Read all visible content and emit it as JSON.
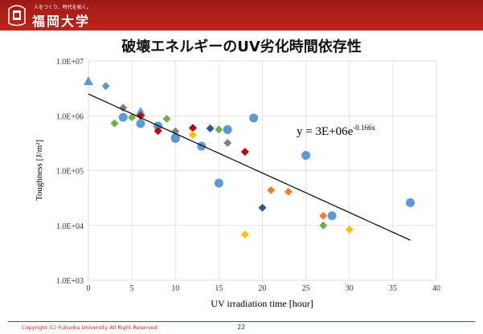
{
  "header": {
    "tagline": "人をつくり、時代を拓く。",
    "university": "福岡大学"
  },
  "slide": {
    "title": "破壊エネルギーのUV劣化時間依存性"
  },
  "footer": {
    "copyright": "Copyright (C) Fukuoka University All Right Reserved",
    "page": "22"
  },
  "chart_data": {
    "type": "scatter",
    "title": "",
    "xlabel": "UV irradiation time [hour]",
    "ylabel": "Toughness [J/m²]",
    "xlim": [
      0,
      40
    ],
    "ylim": [
      1000,
      10000000
    ],
    "yscale": "log",
    "grid": true,
    "xticks": [
      "0",
      "5",
      "10",
      "15",
      "20",
      "25",
      "30",
      "35",
      "40"
    ],
    "yticks": [
      "1.0E+03",
      "1.0E+04",
      "1.0E+05",
      "1.0E+06",
      "1.0E+07"
    ],
    "annotation": {
      "text": "y = 3E+06e",
      "exp": "-0.166x"
    },
    "trendline": {
      "type": "exponential",
      "a": 2500000,
      "b": -0.166,
      "x_range": [
        0,
        37
      ],
      "color": "#000000"
    },
    "colors": {
      "blue": "#5B9BD5",
      "darkblue": "#2F5597",
      "gray": "#808080",
      "red": "#C00000",
      "green": "#70AD47",
      "orange": "#ED7D31",
      "yellow": "#FFC000"
    },
    "points": [
      {
        "x": 0,
        "y": 4300000,
        "shape": "triangle",
        "color": "blue"
      },
      {
        "x": 2,
        "y": 3500000,
        "shape": "diamond",
        "color": "blue"
      },
      {
        "x": 4,
        "y": 1400000,
        "shape": "diamond",
        "color": "gray"
      },
      {
        "x": 4,
        "y": 940000,
        "shape": "circle",
        "color": "blue"
      },
      {
        "x": 6,
        "y": 1200000,
        "shape": "triangle",
        "color": "blue"
      },
      {
        "x": 6,
        "y": 720000,
        "shape": "circle",
        "color": "blue"
      },
      {
        "x": 6,
        "y": 1000000,
        "shape": "diamond",
        "color": "red"
      },
      {
        "x": 3,
        "y": 730000,
        "shape": "diamond",
        "color": "green"
      },
      {
        "x": 5,
        "y": 940000,
        "shape": "diamond",
        "color": "green"
      },
      {
        "x": 8,
        "y": 650000,
        "shape": "circle",
        "color": "blue"
      },
      {
        "x": 8,
        "y": 530000,
        "shape": "diamond",
        "color": "red"
      },
      {
        "x": 9,
        "y": 880000,
        "shape": "diamond",
        "color": "green"
      },
      {
        "x": 10,
        "y": 520000,
        "shape": "diamond",
        "color": "gray"
      },
      {
        "x": 10,
        "y": 390000,
        "shape": "circle",
        "color": "darkblue"
      },
      {
        "x": 10,
        "y": 400000,
        "shape": "circle",
        "color": "blue"
      },
      {
        "x": 12,
        "y": 600000,
        "shape": "diamond",
        "color": "red"
      },
      {
        "x": 12,
        "y": 450000,
        "shape": "diamond",
        "color": "yellow"
      },
      {
        "x": 13,
        "y": 280000,
        "shape": "circle",
        "color": "blue"
      },
      {
        "x": 14,
        "y": 590000,
        "shape": "diamond",
        "color": "darkblue"
      },
      {
        "x": 15,
        "y": 560000,
        "shape": "diamond",
        "color": "green"
      },
      {
        "x": 16,
        "y": 560000,
        "shape": "circle",
        "color": "blue"
      },
      {
        "x": 16,
        "y": 320000,
        "shape": "diamond",
        "color": "gray"
      },
      {
        "x": 18,
        "y": 220000,
        "shape": "diamond",
        "color": "red"
      },
      {
        "x": 19,
        "y": 910000,
        "shape": "circle",
        "color": "blue"
      },
      {
        "x": 25,
        "y": 190000,
        "shape": "circle",
        "color": "blue"
      },
      {
        "x": 15,
        "y": 59000,
        "shape": "circle",
        "color": "blue"
      },
      {
        "x": 21,
        "y": 44000,
        "shape": "diamond",
        "color": "orange"
      },
      {
        "x": 23,
        "y": 41000,
        "shape": "diamond",
        "color": "orange"
      },
      {
        "x": 20,
        "y": 21000,
        "shape": "diamond",
        "color": "darkblue"
      },
      {
        "x": 27,
        "y": 15000,
        "shape": "diamond",
        "color": "orange"
      },
      {
        "x": 28,
        "y": 15000,
        "shape": "circle",
        "color": "blue"
      },
      {
        "x": 27,
        "y": 10000,
        "shape": "diamond",
        "color": "green"
      },
      {
        "x": 18,
        "y": 6800,
        "shape": "diamond",
        "color": "yellow"
      },
      {
        "x": 30,
        "y": 8400,
        "shape": "diamond",
        "color": "yellow"
      },
      {
        "x": 37,
        "y": 26000,
        "shape": "circle",
        "color": "blue"
      }
    ]
  }
}
